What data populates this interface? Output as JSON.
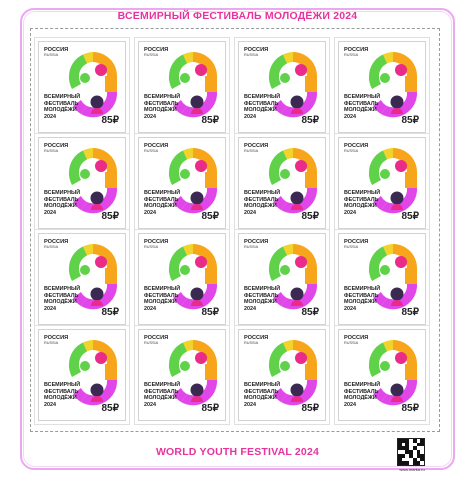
{
  "sheet": {
    "title_top": "ВСЕМИРНЫЙ ФЕСТИВАЛЬ МОЛОДЁЖИ 2024",
    "title_bottom": "WORLD YOUTH FESTIVAL 2024",
    "qr_caption": "www.marka.ru",
    "colors": {
      "frame": "#e9a8ef",
      "title": "#e8329e",
      "green": "#5fd24a",
      "orange": "#f7a51b",
      "yellow": "#f3d22b",
      "magenta": "#e046e8",
      "pink": "#e92b8a",
      "dark": "#3a2a52"
    }
  },
  "stamp": {
    "country": "РОССИЯ",
    "country_latin": "RUSSIA",
    "text": "ВСЕМИРНЫЙ\nФЕСТИВАЛЬ\nМОЛОДЁЖИ\n2024",
    "price": "85₽"
  },
  "stamps": [
    {
      "id": 1
    },
    {
      "id": 2
    },
    {
      "id": 3
    },
    {
      "id": 4
    },
    {
      "id": 5
    },
    {
      "id": 6
    },
    {
      "id": 7
    },
    {
      "id": 8
    },
    {
      "id": 9
    },
    {
      "id": 10
    },
    {
      "id": 11
    },
    {
      "id": 12
    },
    {
      "id": 13
    },
    {
      "id": 14
    },
    {
      "id": 15
    },
    {
      "id": 16
    }
  ]
}
